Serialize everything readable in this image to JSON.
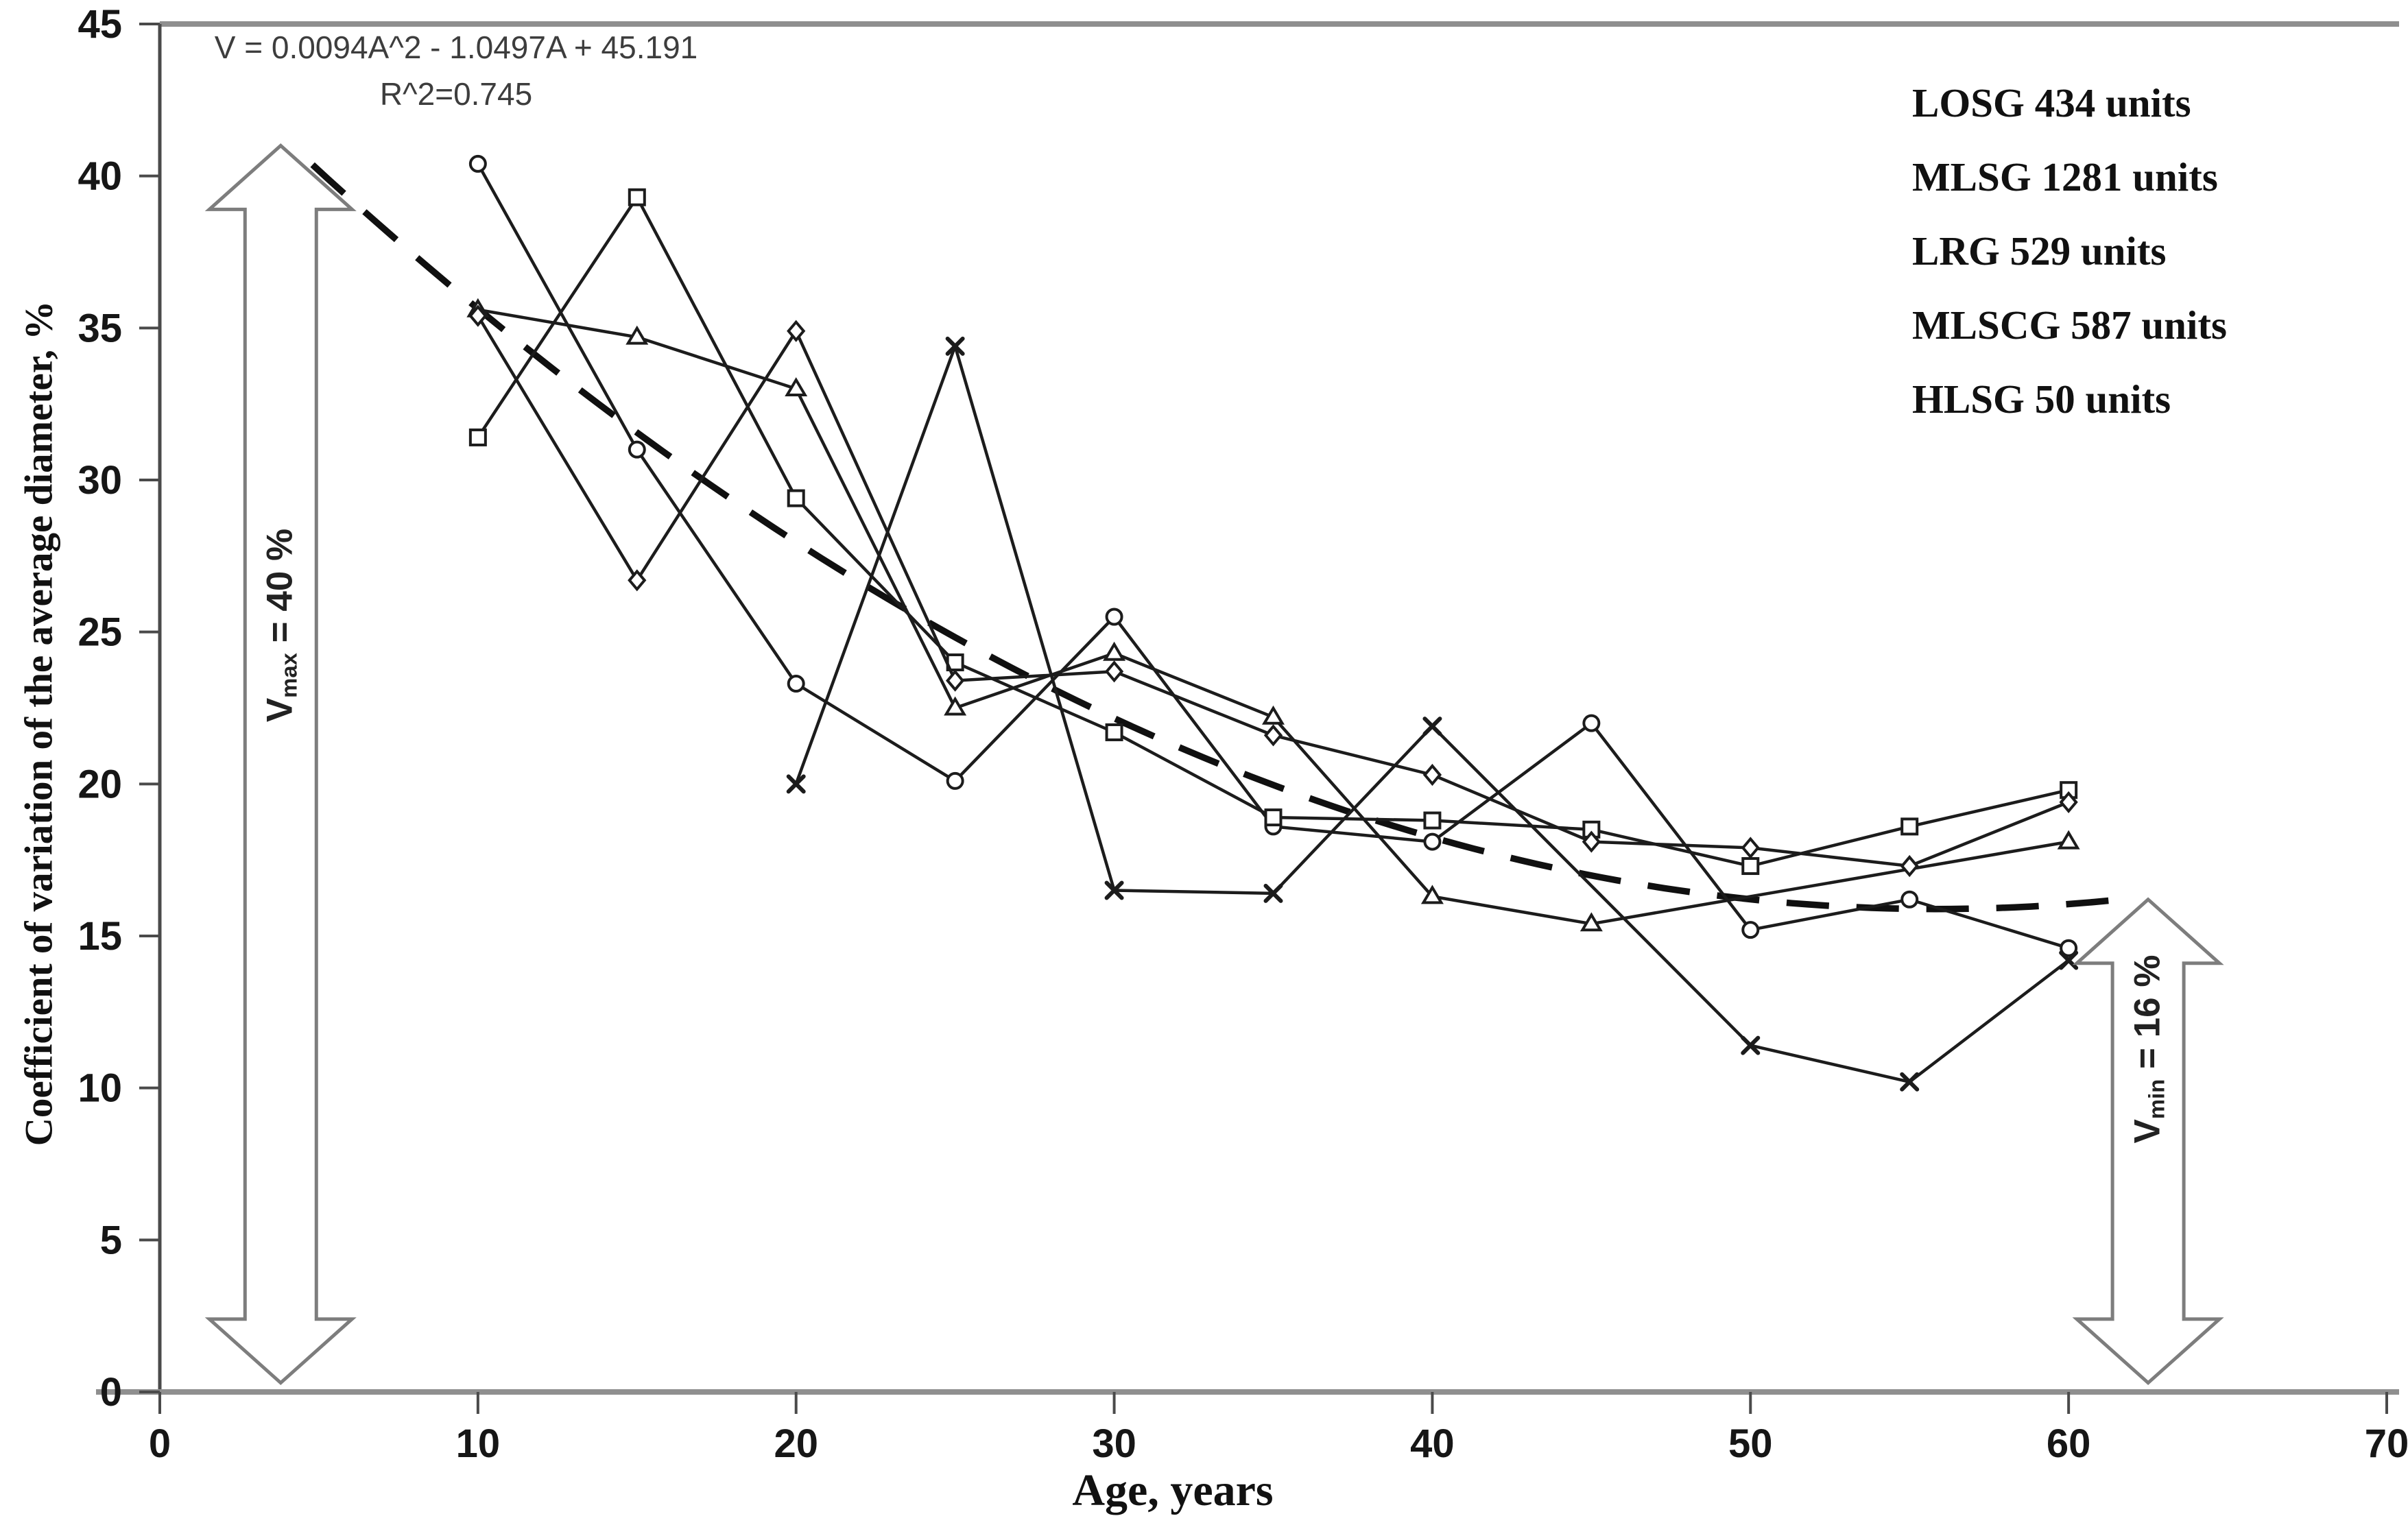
{
  "equation": {
    "line1": "V = 0.0094A^2 - 1.0497A + 45.191",
    "line2": "R^2=0.745"
  },
  "legend": {
    "items": [
      "LOSG 434 units",
      "MLSG 1281 units",
      "LRG 529 units",
      "MLSCG 587 units",
      "HLSG 50 units"
    ]
  },
  "axes": {
    "x": {
      "label": "Age, years",
      "ticks": [
        0,
        10,
        20,
        30,
        40,
        50,
        60,
        70
      ],
      "range": [
        0,
        70
      ]
    },
    "y": {
      "label": "Coefficient  of variation  of the average diameter,  %",
      "ticks": [
        0,
        5,
        10,
        15,
        20,
        25,
        30,
        35,
        40,
        45
      ],
      "range": [
        0,
        45
      ]
    }
  },
  "annotations": {
    "vmax": {
      "base": "V",
      "sub": "max",
      "rest": " = 40 %"
    },
    "vmin": {
      "base": "V",
      "sub": "min",
      "rest": " = 16 %"
    }
  },
  "colors": {
    "series_line": "#1c1c1c",
    "marker_fill": "#ffffff",
    "frame_gray": "#8f8f8f",
    "axis_dark": "#4a4a4a",
    "tick_text": "#161616",
    "arrow_outline": "#7d7d7d",
    "trendline": "#101010"
  },
  "chart_data": {
    "type": "line",
    "title": "",
    "xlabel": "Age, years",
    "ylabel": "Coefficient of variation of the average diameter, %",
    "xlim": [
      0,
      70
    ],
    "ylim": [
      0,
      45
    ],
    "grid": false,
    "legend_position": "top-right",
    "series": [
      {
        "name": "LOSG 434 units",
        "marker": "circle",
        "points": [
          [
            10,
            40.4
          ],
          [
            15,
            31.0
          ],
          [
            20,
            23.3
          ],
          [
            25,
            20.1
          ],
          [
            30,
            25.5
          ],
          [
            35,
            18.6
          ],
          [
            40,
            18.1
          ],
          [
            45,
            22.0
          ],
          [
            50,
            15.2
          ],
          [
            55,
            16.2
          ],
          [
            60,
            14.6
          ]
        ]
      },
      {
        "name": "MLSG 1281 units",
        "marker": "square",
        "points": [
          [
            10,
            31.4
          ],
          [
            15,
            39.3
          ],
          [
            20,
            29.4
          ],
          [
            25,
            24.0
          ],
          [
            30,
            21.7
          ],
          [
            35,
            18.9
          ],
          [
            40,
            18.8
          ],
          [
            45,
            18.5
          ],
          [
            50,
            17.3
          ],
          [
            55,
            18.6
          ],
          [
            60,
            19.8
          ]
        ]
      },
      {
        "name": "LRG 529 units",
        "marker": "triangle",
        "points": [
          [
            10,
            35.6
          ],
          [
            15,
            34.7
          ],
          [
            20,
            33.0
          ],
          [
            25,
            22.5
          ],
          [
            30,
            24.3
          ],
          [
            35,
            22.2
          ],
          [
            40,
            16.3
          ],
          [
            45,
            15.4
          ],
          [
            60,
            18.1
          ]
        ]
      },
      {
        "name": "MLSCG 587 units",
        "marker": "diamond",
        "points": [
          [
            10,
            35.4
          ],
          [
            15,
            26.7
          ],
          [
            20,
            34.9
          ],
          [
            25,
            23.4
          ],
          [
            30,
            23.7
          ],
          [
            35,
            21.6
          ],
          [
            40,
            20.3
          ],
          [
            45,
            18.1
          ],
          [
            50,
            17.9
          ],
          [
            55,
            17.3
          ],
          [
            60,
            19.4
          ]
        ]
      },
      {
        "name": "HLSG 50 units",
        "marker": "x",
        "points": [
          [
            20,
            20.0
          ],
          [
            25,
            34.4
          ],
          [
            30,
            16.5
          ],
          [
            35,
            16.4
          ],
          [
            40,
            21.9
          ],
          [
            50,
            11.4
          ],
          [
            55,
            10.2
          ],
          [
            60,
            14.2
          ]
        ]
      }
    ],
    "trendline": {
      "label": "V = 0.0094A^2 - 1.0497A + 45.191",
      "a": 0.0094,
      "b": -1.0497,
      "c": 45.191,
      "r2": 0.745,
      "x_from": 4.8,
      "x_to": 62,
      "style": "dashed"
    },
    "arrows": [
      {
        "label": "Vmax = 40 %",
        "x": 3.8,
        "y_from": 0.3,
        "y_to": 41.0
      },
      {
        "label": "Vmin = 16 %",
        "x": 62.5,
        "y_from": 0.3,
        "y_to": 16.2
      }
    ]
  }
}
